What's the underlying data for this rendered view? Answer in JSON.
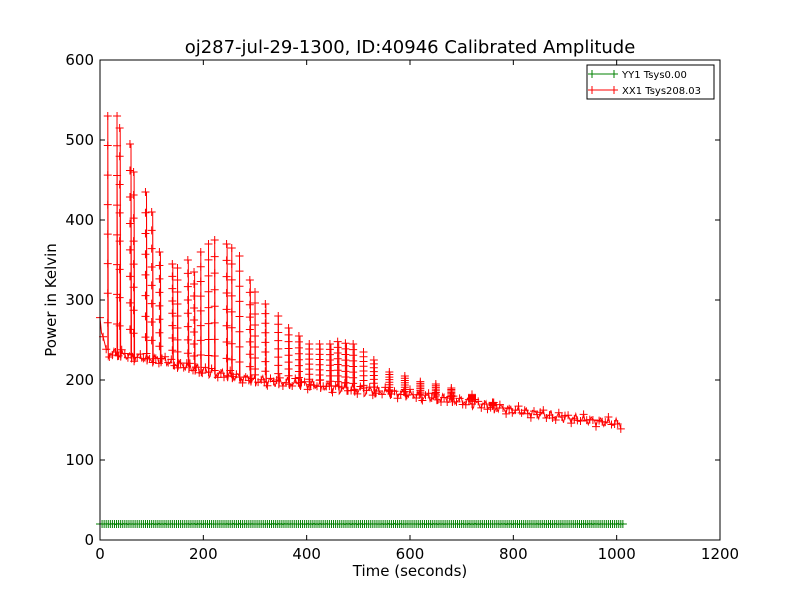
{
  "chart_data": {
    "type": "scatter",
    "title": "oj287-jul-29-1300, ID:40946 Calibrated Amplitude",
    "xlabel": "Time (seconds)",
    "ylabel": "Power in Kelvin",
    "xlim": [
      0,
      1200
    ],
    "ylim": [
      0,
      600
    ],
    "xticks": [
      0,
      200,
      400,
      600,
      800,
      1000,
      1200
    ],
    "yticks": [
      0,
      100,
      200,
      300,
      400,
      500,
      600
    ],
    "grid": false,
    "legend_position": "top-right",
    "marker": "+",
    "series": [
      {
        "name": "YY1 Tsys0.00",
        "color": "#008000",
        "x": [
          0,
          1015
        ],
        "y": [
          20,
          20
        ]
      },
      {
        "name": "XX1 Tsys208.03",
        "color": "#ff0000",
        "x": [
          0,
          12,
          60,
          120,
          200,
          300,
          400,
          500,
          600,
          700,
          800,
          900,
          1010
        ],
        "y": [
          275,
          235,
          230,
          225,
          212,
          200,
          195,
          188,
          182,
          174,
          162,
          153,
          145
        ],
        "spikes": [
          {
            "x": 15,
            "peak": 530
          },
          {
            "x": 33,
            "peak": 530
          },
          {
            "x": 38,
            "peak": 515
          },
          {
            "x": 58,
            "peak": 495
          },
          {
            "x": 65,
            "peak": 460
          },
          {
            "x": 88,
            "peak": 435
          },
          {
            "x": 100,
            "peak": 410
          },
          {
            "x": 115,
            "peak": 360
          },
          {
            "x": 140,
            "peak": 345
          },
          {
            "x": 150,
            "peak": 340
          },
          {
            "x": 170,
            "peak": 350
          },
          {
            "x": 182,
            "peak": 335
          },
          {
            "x": 195,
            "peak": 360
          },
          {
            "x": 210,
            "peak": 370
          },
          {
            "x": 222,
            "peak": 375
          },
          {
            "x": 245,
            "peak": 370
          },
          {
            "x": 255,
            "peak": 365
          },
          {
            "x": 270,
            "peak": 355
          },
          {
            "x": 290,
            "peak": 325
          },
          {
            "x": 300,
            "peak": 310
          },
          {
            "x": 320,
            "peak": 295
          },
          {
            "x": 345,
            "peak": 280
          },
          {
            "x": 365,
            "peak": 265
          },
          {
            "x": 385,
            "peak": 255
          },
          {
            "x": 405,
            "peak": 245
          },
          {
            "x": 425,
            "peak": 245
          },
          {
            "x": 445,
            "peak": 245
          },
          {
            "x": 460,
            "peak": 248
          },
          {
            "x": 475,
            "peak": 246
          },
          {
            "x": 490,
            "peak": 245
          },
          {
            "x": 510,
            "peak": 235
          },
          {
            "x": 530,
            "peak": 225
          },
          {
            "x": 560,
            "peak": 210
          },
          {
            "x": 590,
            "peak": 205
          },
          {
            "x": 620,
            "peak": 198
          },
          {
            "x": 650,
            "peak": 195
          },
          {
            "x": 680,
            "peak": 190
          },
          {
            "x": 720,
            "peak": 182
          },
          {
            "x": 760,
            "peak": 172
          }
        ]
      }
    ]
  }
}
